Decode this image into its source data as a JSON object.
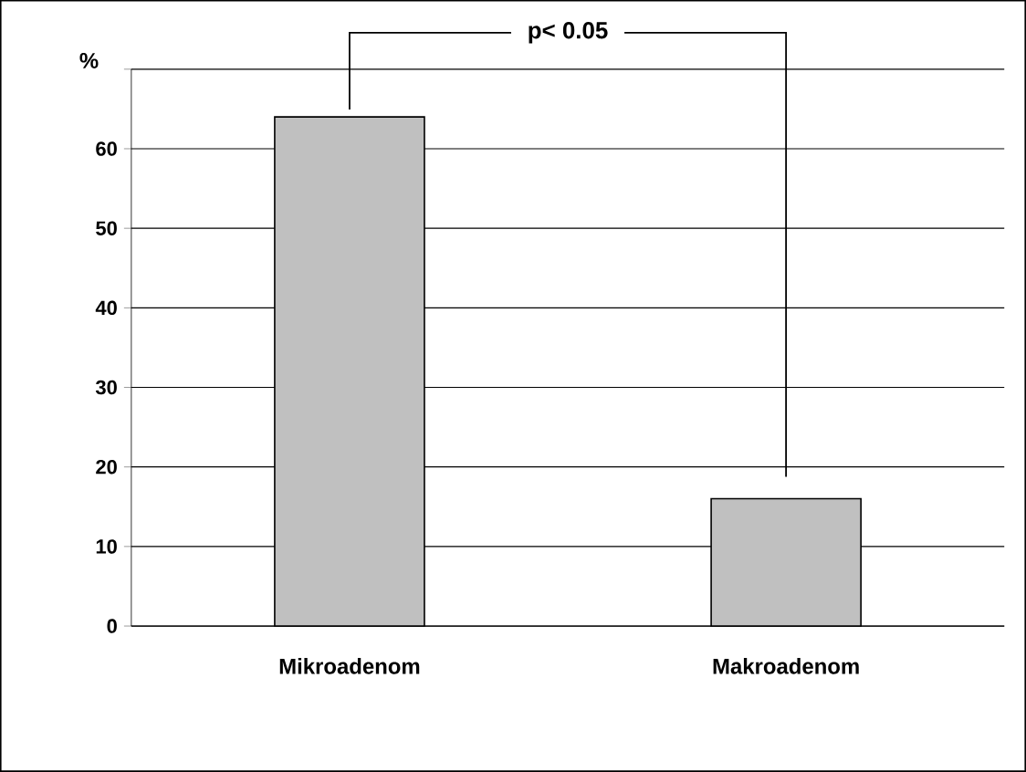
{
  "chart_data": {
    "type": "bar",
    "ylabel": "%",
    "categories": [
      "Mikroadenom",
      "Makroadenom"
    ],
    "values": [
      64,
      16
    ],
    "color": "#c0c0c0",
    "ylim": [
      0,
      70
    ],
    "yticks": [
      0,
      10,
      20,
      30,
      40,
      50,
      60,
      {
        "value": 70,
        "label": null
      }
    ],
    "grid": "y",
    "annotations": [
      "p< 0.05"
    ]
  }
}
